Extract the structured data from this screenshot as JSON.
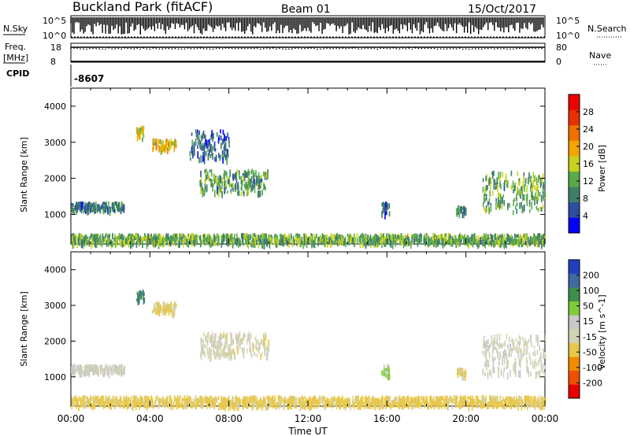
{
  "header": {
    "station": "Buckland Park (fitACF)",
    "beam": "Beam 01",
    "date": "15/Oct/2017"
  },
  "top_panels": {
    "nsky_label": "N.Sky",
    "nsky_ticks": [
      "10^5",
      "10^0"
    ],
    "nsearch_label": "N.Search",
    "freq_label_1": "Freq.",
    "freq_label_2": "[MHz]",
    "freq_ticks": [
      "18",
      "8"
    ],
    "nave_label": "Nave",
    "nave_ticks": [
      "80",
      "0"
    ],
    "cpid_label": "CPID",
    "cpid_value": "-8607"
  },
  "x_axis": {
    "label": "Time UT",
    "ticks": [
      "00:00",
      "04:00",
      "08:00",
      "12:00",
      "16:00",
      "20:00",
      "00:00"
    ]
  },
  "colors": {
    "power_scale": [
      "#0000ff",
      "#2d4ea0",
      "#3f7f6a",
      "#5aaa4a",
      "#c8d21e",
      "#f5a500",
      "#f07000",
      "#e83000",
      "#ee0000"
    ],
    "velocity_scale": [
      "#e60000",
      "#f05000",
      "#f08c00",
      "#e8c84a",
      "#d2d2b4",
      "#c8c8c8",
      "#7fcc3a",
      "#3f8f4f",
      "#3f6aa0",
      "#2040c0"
    ]
  },
  "chart_data": [
    {
      "type": "heatmap",
      "title": "",
      "ylabel": "Slant Range [km]",
      "xlabel": "",
      "x_unit": "hours UT",
      "x_range": [
        0,
        24
      ],
      "ylim": [
        180,
        4500
      ],
      "y_ticks": [
        "1000",
        "2000",
        "3000",
        "4000"
      ],
      "colorbar": {
        "label": "Power [dB]",
        "ticks": [
          "4",
          "8",
          "12",
          "16",
          "20",
          "24",
          "28"
        ],
        "range": [
          0,
          32
        ]
      },
      "regions": [
        {
          "t0": 0.0,
          "t1": 2.7,
          "r0": 1080,
          "r1": 1300,
          "level": 8
        },
        {
          "t0": 3.3,
          "t1": 3.7,
          "r0": 3050,
          "r1": 3400,
          "level": 16
        },
        {
          "t0": 4.1,
          "t1": 5.3,
          "r0": 2780,
          "r1": 3050,
          "level": 18
        },
        {
          "t0": 6.5,
          "t1": 10.0,
          "r0": 1550,
          "r1": 2200,
          "level": 11
        },
        {
          "t0": 6.0,
          "t1": 8.0,
          "r0": 2500,
          "r1": 3300,
          "level": 7
        },
        {
          "t0": 0.0,
          "t1": 24.0,
          "r0": 180,
          "r1": 420,
          "level": 12
        },
        {
          "t0": 15.7,
          "t1": 16.1,
          "r0": 1000,
          "r1": 1300,
          "level": 6
        },
        {
          "t0": 19.5,
          "t1": 20.0,
          "r0": 1000,
          "r1": 1200,
          "level": 9
        },
        {
          "t0": 20.8,
          "t1": 24.0,
          "r0": 1050,
          "r1": 2150,
          "level": 12
        }
      ]
    },
    {
      "type": "heatmap",
      "title": "",
      "ylabel": "Slant Range [km]",
      "xlabel": "Time UT",
      "x_unit": "hours UT",
      "x_range": [
        0,
        24
      ],
      "ylim": [
        180,
        4500
      ],
      "y_ticks": [
        "1000",
        "2000",
        "3000",
        "4000"
      ],
      "colorbar": {
        "label": "Velocity [m s^-1]",
        "ticks": [
          "200",
          "100",
          "50",
          "15",
          "-15",
          "-50",
          "-100",
          "-200"
        ],
        "range": [
          -250,
          250
        ]
      },
      "regions": [
        {
          "t0": 0.0,
          "t1": 2.7,
          "r0": 1080,
          "r1": 1300,
          "level": -5
        },
        {
          "t0": 3.3,
          "t1": 3.7,
          "r0": 3050,
          "r1": 3400,
          "level": 150
        },
        {
          "t0": 4.1,
          "t1": 5.3,
          "r0": 2780,
          "r1": 3050,
          "level": -60
        },
        {
          "t0": 6.5,
          "t1": 10.0,
          "r0": 1550,
          "r1": 2200,
          "level": -25
        },
        {
          "t0": 0.0,
          "t1": 24.0,
          "r0": 180,
          "r1": 420,
          "level": -70
        },
        {
          "t0": 15.7,
          "t1": 16.1,
          "r0": 1000,
          "r1": 1300,
          "level": 60
        },
        {
          "t0": 19.5,
          "t1": 20.0,
          "r0": 1000,
          "r1": 1200,
          "level": -60
        },
        {
          "t0": 20.8,
          "t1": 24.0,
          "r0": 1050,
          "r1": 2150,
          "level": -10
        }
      ]
    }
  ]
}
